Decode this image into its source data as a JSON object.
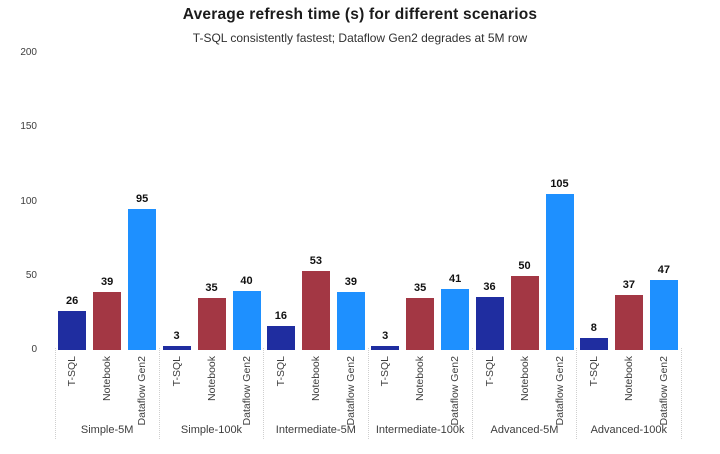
{
  "chart_data": {
    "type": "bar",
    "title": "Average refresh time (s) for different scenarios",
    "subtitle": "T-SQL consistently fastest; Dataflow Gen2 degrades at 5M row",
    "categories": [
      "Simple-5M",
      "Simple-100k",
      "Intermediate-5M",
      "Intermediate-100k",
      "Advanced-5M",
      "Advanced-100k"
    ],
    "series": [
      {
        "name": "T-SQL",
        "color": "#1F2DA0",
        "values": [
          26,
          3,
          16,
          3,
          36,
          8
        ]
      },
      {
        "name": "Notebook",
        "color": "#A33744",
        "values": [
          39,
          35,
          53,
          35,
          50,
          37
        ]
      },
      {
        "name": "Dataflow Gen2",
        "color": "#1E90FF",
        "values": [
          95,
          40,
          39,
          41,
          105,
          47
        ]
      }
    ],
    "ylabel": "",
    "xlabel": "",
    "ylim": [
      0,
      200
    ],
    "yticks": [
      0,
      50,
      100,
      150,
      200
    ],
    "grid": false,
    "legend": "none",
    "value_labels_shown": true,
    "group_separator_style": "dotted",
    "background_color": "#ffffff"
  }
}
